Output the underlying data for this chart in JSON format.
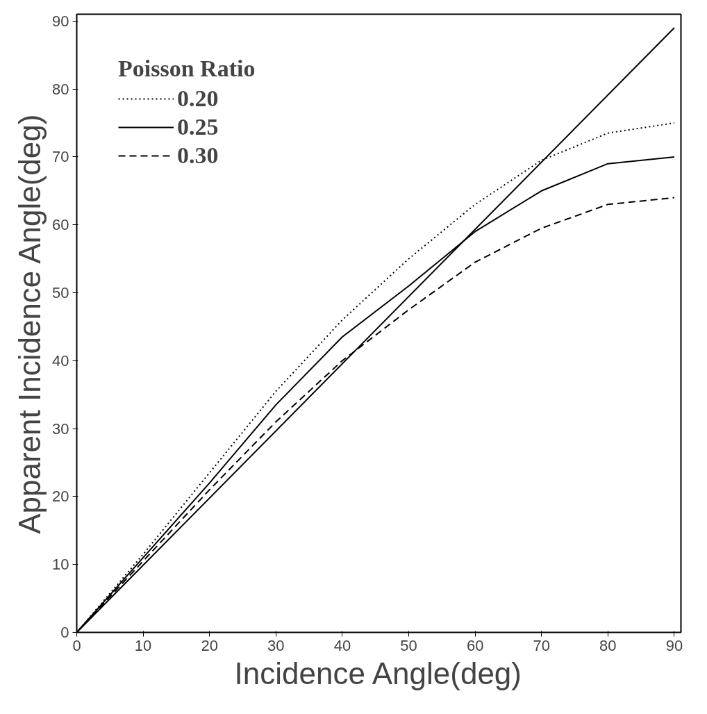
{
  "chart_data": {
    "type": "line",
    "xlabel": "Incidence Angle(deg)",
    "ylabel": "Apparent Incidence Angle(deg)",
    "legend_title": "Poisson Ratio",
    "x": [
      0,
      10,
      20,
      30,
      40,
      50,
      60,
      70,
      80,
      90
    ],
    "series": [
      {
        "name": "0.20",
        "color": "#000000",
        "line_style": "dotted",
        "values": [
          0,
          11.5,
          23.5,
          35.5,
          46,
          55,
          63,
          69.5,
          73.5,
          75
        ]
      },
      {
        "name": "0.25",
        "color": "#000000",
        "line_style": "solid",
        "values": [
          0,
          11,
          22,
          33.5,
          43.5,
          51,
          59,
          65,
          69,
          70
        ]
      },
      {
        "name": "0.30",
        "color": "#000000",
        "line_style": "dashed",
        "values": [
          0,
          10.5,
          21,
          31,
          40,
          47.5,
          54.5,
          59.5,
          63,
          64
        ]
      },
      {
        "color": "#000000",
        "line_style": "solid",
        "x": [
          0,
          90
        ],
        "values": [
          0,
          89
        ]
      }
    ],
    "xlim": [
      0,
      91
    ],
    "ylim": [
      0,
      91
    ],
    "xticks": [
      0,
      10,
      20,
      30,
      40,
      50,
      60,
      70,
      80,
      90
    ],
    "yticks": [
      0,
      10,
      20,
      30,
      40,
      50,
      60,
      70,
      80,
      90
    ],
    "grid": false,
    "legend": "top left"
  }
}
